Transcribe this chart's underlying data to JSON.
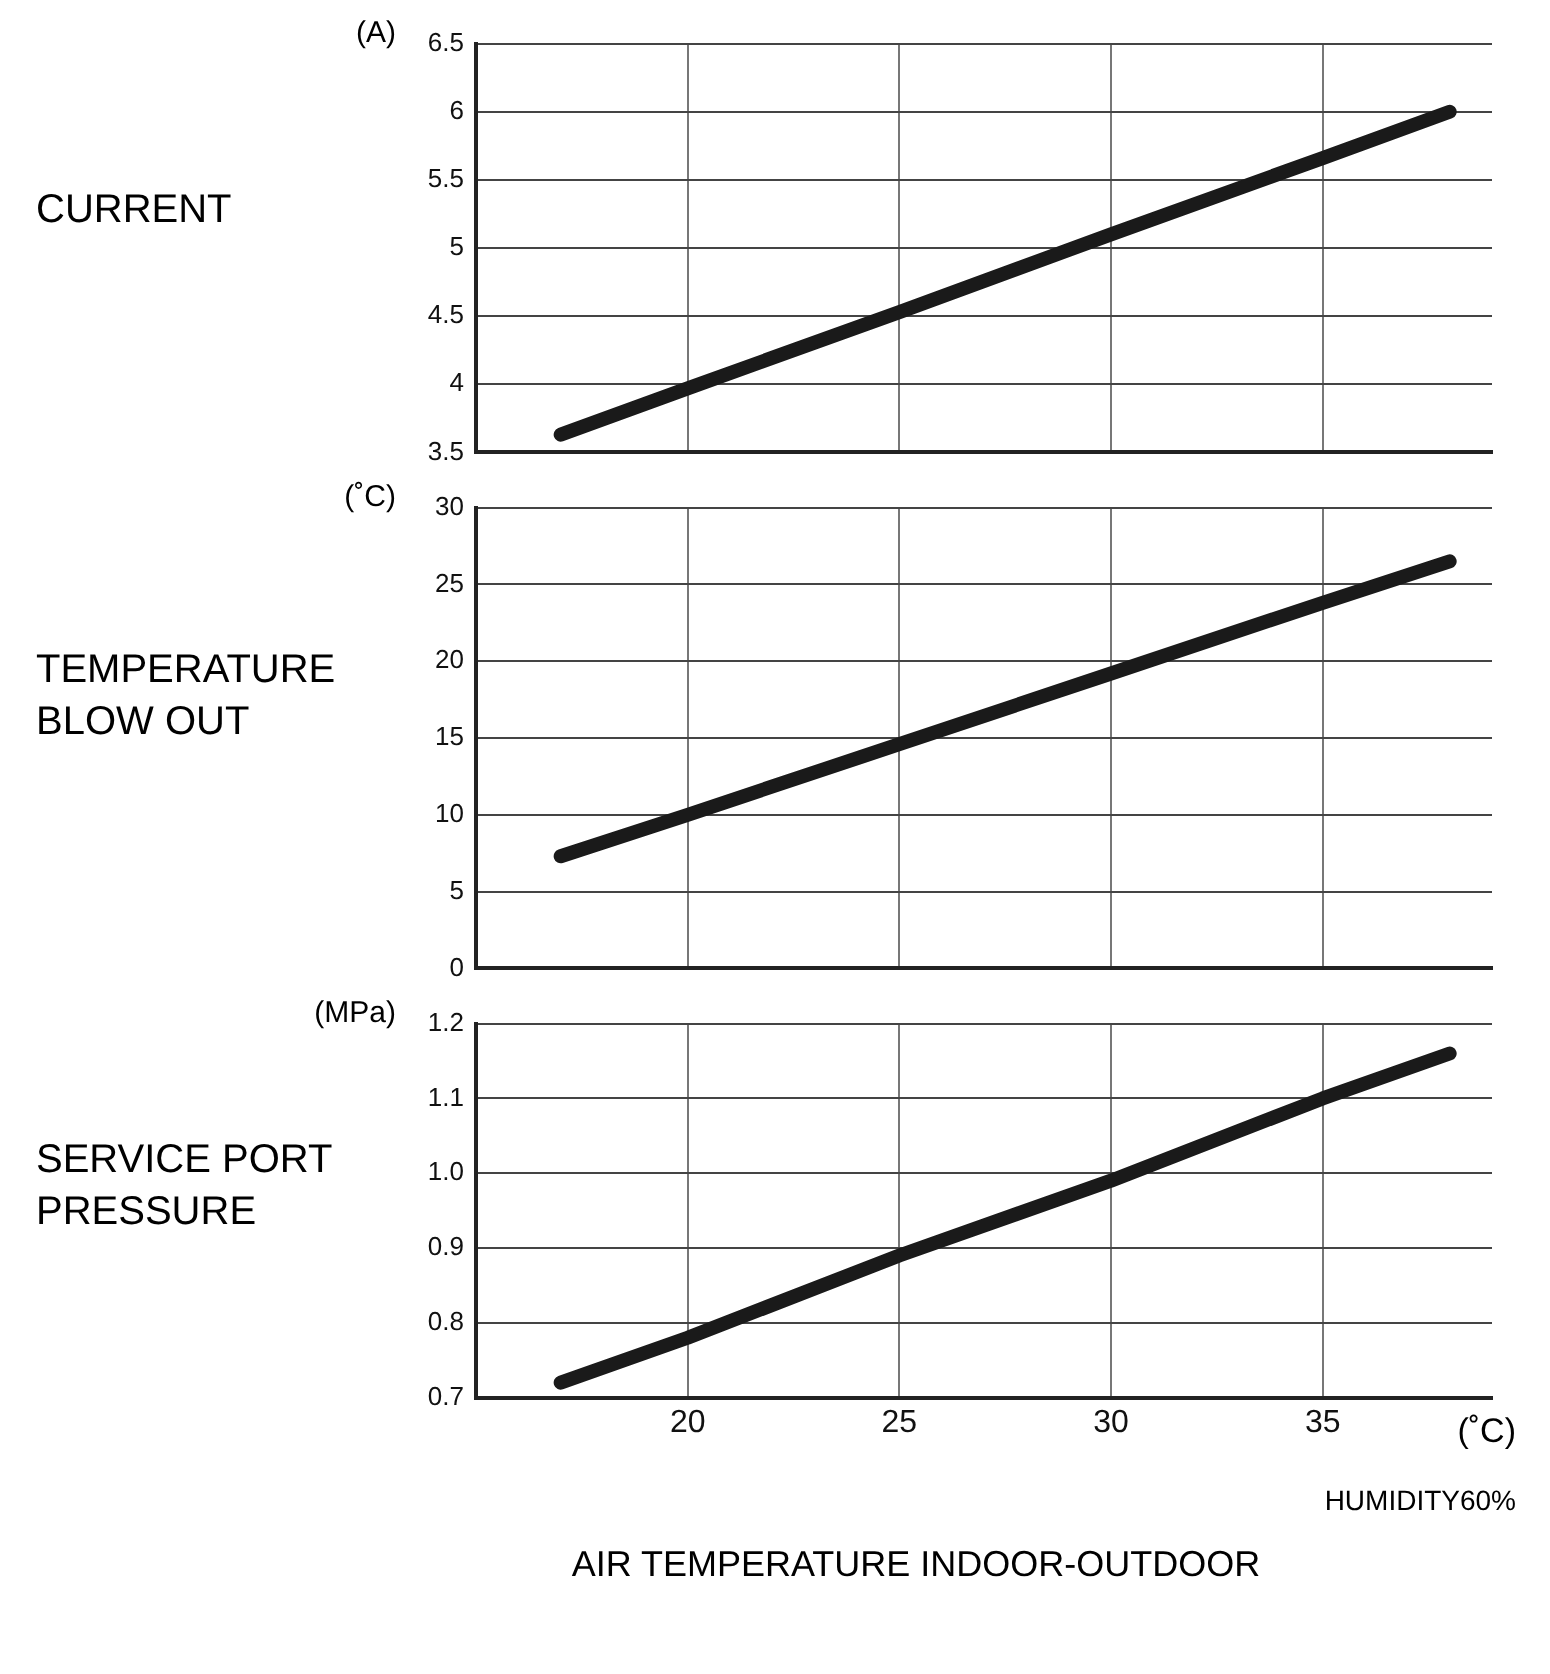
{
  "chart_data": [
    {
      "type": "line",
      "title": "CURRENT",
      "ylabel": "(A)",
      "series": [
        {
          "color": "#1a1a1a",
          "x": [
            17,
            20,
            25,
            30,
            35,
            38
          ],
          "values": [
            3.63,
            3.97,
            4.53,
            5.1,
            5.66,
            6.0
          ]
        }
      ],
      "xlim": [
        15,
        39
      ],
      "xticks": [
        20,
        25,
        30,
        35
      ],
      "ylim": [
        3.5,
        6.5
      ],
      "yticks": [
        3.5,
        4,
        4.5,
        5,
        5.5,
        6,
        6.5
      ],
      "grid": true,
      "legend": false,
      "tick_labels": "y"
    },
    {
      "type": "line",
      "title": "TEMPERATURE\nBLOW OUT",
      "ylabel": "(˚C)",
      "series": [
        {
          "color": "#1a1a1a",
          "x": [
            17,
            20,
            25,
            30,
            35,
            38
          ],
          "values": [
            7.3,
            10.0,
            14.6,
            19.2,
            23.8,
            26.5
          ]
        }
      ],
      "xlim": [
        15,
        39
      ],
      "xticks": [
        20,
        25,
        30,
        35
      ],
      "ylim": [
        0,
        30
      ],
      "yticks": [
        0,
        5,
        10,
        15,
        20,
        25,
        30
      ],
      "grid": true,
      "legend": false,
      "tick_labels": "y"
    },
    {
      "type": "line",
      "title": "SERVICE PORT\nPRESSURE",
      "ylabel": "(MPa)",
      "xlabel": "(˚C)",
      "series": [
        {
          "color": "#1a1a1a",
          "x": [
            17,
            20,
            25,
            30,
            35,
            38
          ],
          "values": [
            0.72,
            0.78,
            0.89,
            0.99,
            1.1,
            1.16
          ]
        }
      ],
      "xlim": [
        15,
        39
      ],
      "xticks": [
        20,
        25,
        30,
        35
      ],
      "ylim": [
        0.7,
        1.2
      ],
      "yticks": [
        {
          "value": 0.7,
          "label": "0.7"
        },
        {
          "value": 0.8,
          "label": "0.8"
        },
        {
          "value": 0.9,
          "label": "0.9"
        },
        {
          "value": 1.0,
          "label": "1.0"
        },
        {
          "value": 1.1,
          "label": "1.1"
        },
        {
          "value": 1.2,
          "label": "1.2"
        }
      ],
      "grid": true,
      "legend": false,
      "annotations": [
        "HUMIDITY60%",
        "AIR  TEMPERATURE INDOOR-OUTDOOR"
      ]
    }
  ]
}
